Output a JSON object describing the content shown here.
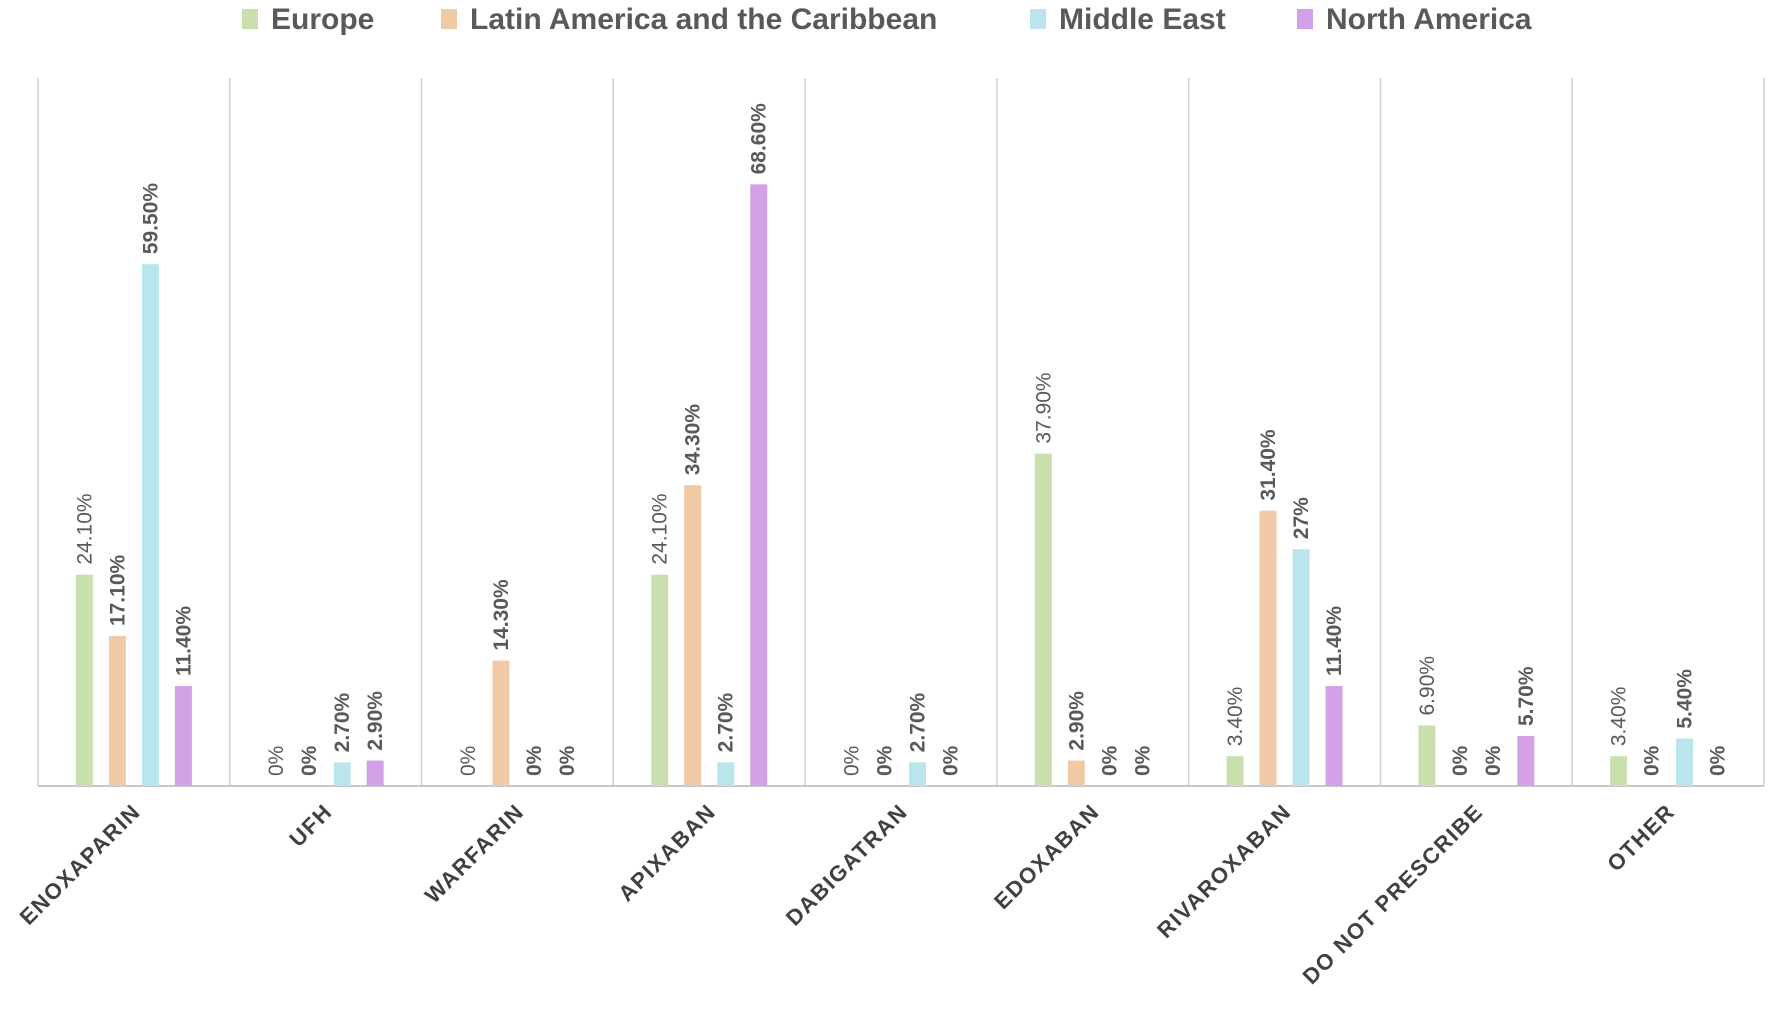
{
  "chart_data": {
    "type": "bar",
    "title": "",
    "xlabel": "",
    "ylabel": "",
    "ylim": [
      0,
      80
    ],
    "grid": "vertical category separators",
    "legend_position": "top-center",
    "categories": [
      "ENOXAPARIN",
      "UFH",
      "WARFARIN",
      "APIXABAN",
      "DABIGATRAN",
      "EDOXABAN",
      "RIVAROXABAN",
      "DO NOT PRESCRIBE",
      "OTHER"
    ],
    "series": [
      {
        "name": "Europe",
        "color": "#c9dfad",
        "values": [
          24.1,
          0,
          0,
          24.1,
          0,
          37.9,
          3.4,
          6.9,
          3.4
        ],
        "labels": [
          "24.10%",
          "0%",
          "0%",
          "24.10%",
          "0%",
          "37.90%",
          "3.40%",
          "6.90%",
          "3.40%"
        ]
      },
      {
        "name": "Latin America and the Caribbean",
        "color": "#f2c9a7",
        "values": [
          17.1,
          0,
          14.3,
          34.3,
          0,
          2.9,
          31.4,
          0,
          0
        ],
        "labels": [
          "17.10%",
          "0%",
          "14.30%",
          "34.30%",
          "0%",
          "2.90%",
          "31.40%",
          "0%",
          "0%"
        ]
      },
      {
        "name": "Middle East",
        "color": "#b9e6ec",
        "values": [
          59.5,
          2.7,
          0,
          2.7,
          2.7,
          0,
          27,
          0,
          5.4
        ],
        "labels": [
          "59.50%",
          "2.70%",
          "0%",
          "2.70%",
          "2.70%",
          "0%",
          "27%",
          "0%",
          "5.40%"
        ]
      },
      {
        "name": "North America",
        "color": "#d4a0e8",
        "values": [
          11.4,
          2.9,
          0,
          68.6,
          0,
          0,
          11.4,
          5.7,
          0
        ],
        "labels": [
          "11.40%",
          "2.90%",
          "0%",
          "68.60%",
          "0%",
          "0%",
          "11.40%",
          "5.70%",
          "0%"
        ]
      }
    ]
  }
}
